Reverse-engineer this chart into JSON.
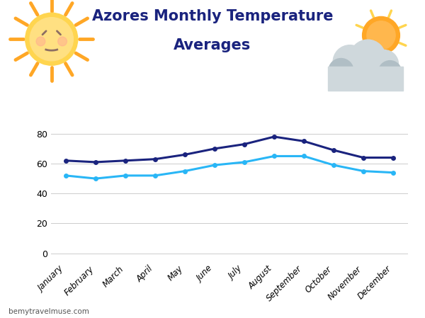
{
  "title_line1": "Azores Monthly Temperature",
  "title_line2": "Averages",
  "months": [
    "January",
    "February",
    "March",
    "April",
    "May",
    "June",
    "July",
    "August",
    "September",
    "October",
    "November",
    "December"
  ],
  "high_temps": [
    62,
    61,
    62,
    63,
    66,
    70,
    73,
    78,
    75,
    69,
    64,
    64
  ],
  "low_temps": [
    52,
    50,
    52,
    52,
    55,
    59,
    61,
    65,
    65,
    59,
    55,
    54
  ],
  "high_color": "#1a237e",
  "low_color": "#29b6f6",
  "background_color": "#ffffff",
  "grid_color": "#cccccc",
  "yticks": [
    0,
    20,
    40,
    60,
    80
  ],
  "ylim": [
    -5,
    95
  ],
  "title_color": "#1a237e",
  "watermark": "bemytravelmuse.com",
  "marker": "o",
  "marker_size": 5,
  "line_width": 2.2
}
